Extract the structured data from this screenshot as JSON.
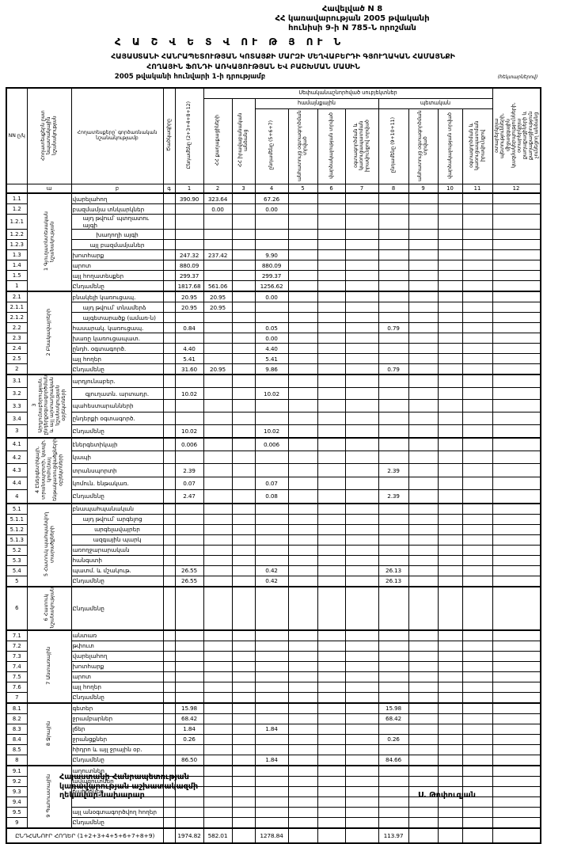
{
  "page": {
    "annex": [
      "Հավելված N 8",
      "ՀՀ կառավարության 2005 թվականի",
      "հունիսի 9-ի N 785-Ն որոշման"
    ],
    "title": "Հ Ա Շ Վ Ե Տ Վ ՈՒ Թ Յ ՈՒ Ն",
    "subtitle1": "ՀԱՅԱՍՏԱՆԻ ՀԱՆՐԱՊԵՏՈՒԹՅԱՆ ԿՈՏԱՅՔԻ ՄԱՐԶԻ ՄԵՂՎԱԲԵՐԴԻ ԳՅՈՒՂԱԿԱՆ ՀԱՄԱՅՆՔԻ",
    "subtitle2": "ՀՈՂԱՅԻՆ ՖՈՆԴԻ ԱՌԿԱՅՈՒԹՅԱՆ ԵՎ ԲԱՇԽՄԱՆ ՄԱՍԻՆ",
    "subtitle3": "2005 թվականի հունվարի 1-ի դրությամբ",
    "units_note": "(հեկտարներով)"
  },
  "table": {
    "head": {
      "nn": "NN ը/կ",
      "section_col": "Հողատեսքերն ըստ նպատակային նշանակության",
      "name_col": "Հողատեսքերը՝ գործառնական նշանակությամբ",
      "code_col": "Ծածկագիրը",
      "band_owner": "Սեփականաշնորհված սուբյեկտներ",
      "band_community": "համայնքային",
      "band_state": "պետական",
      "c1": "Ընդամենը (2+3+4+8+12)",
      "c2": "ՀՀ քաղաքացիների",
      "c3": "ՀՀ իրավաբանական անձանց",
      "c4": "ընդամենը (5+6+7)",
      "c5": "անհատույց օգտագործման տրված",
      "c6": "վարձակալության տրված",
      "c7": "օգտագործման և կառուցապատման իրավունքով տրված",
      "c8": "ընդամենը (9+10+11)",
      "c9": "անհատույց օգտագործման տրված",
      "c10": "վարձակալության տրված",
      "c11": "օգտագործման և կառուցապատման իրավունքով",
      "c12": "օտարերկրյա պետությունների, միջազգային կազմակերպությունների, օտարերկրյա քաղաքացիների և քաղաքացիություն չունեցող անձանց",
      "letters": [
        "",
        "ա",
        "բ",
        "գ",
        "1",
        "2",
        "3",
        "4",
        "5",
        "6",
        "7",
        "8",
        "9",
        "10",
        "11",
        "12"
      ]
    },
    "sections": [
      {
        "label": "1 Գյուղատնտեսական նշանակության",
        "rows": [
          {
            "n": "1.1",
            "name": "վարելահող",
            "v": {
              "c1": "390.90",
              "c2": "323.64",
              "c4": "67.26"
            }
          },
          {
            "n": "1.2",
            "name": "բազմամյա տնկարկներ",
            "v": {
              "c2": "0.00",
              "c4": "0.00"
            }
          },
          {
            "n": "1.2.1",
            "name": "այդ թվում՝ պտղատու այգի",
            "indent": 1
          },
          {
            "n": "1.2.2",
            "name": "խաղողի այգի",
            "indent": 2
          },
          {
            "n": "1.2.3",
            "name": "այլ բազմամյաներ",
            "indent": 2
          },
          {
            "n": "1.3",
            "name": "խոտհարք",
            "v": {
              "c1": "247.32",
              "c2": "237.42",
              "c4": "9.90"
            }
          },
          {
            "n": "1.4",
            "name": "արոտ",
            "v": {
              "c1": "880.09",
              "c4": "880.09"
            }
          },
          {
            "n": "1.5",
            "name": "այլ հողատեսքեր",
            "v": {
              "c1": "299.37",
              "c4": "299.37"
            }
          },
          {
            "n": "1",
            "name": "Ընդամենը",
            "total": true,
            "v": {
              "c1": "1817.68",
              "c2": "561.06",
              "c4": "1256.62"
            }
          }
        ]
      },
      {
        "label": "2 Բնակավայրերի",
        "rows": [
          {
            "n": "2.1",
            "name": "բնակելի կառուցապ.",
            "v": {
              "c1": "20.95",
              "c2": "20.95",
              "c4": "0.00"
            }
          },
          {
            "n": "2.1.1",
            "name": "այդ թվում՝ տնամերձ",
            "indent": 1,
            "v": {
              "c1": "20.95",
              "c2": "20.95"
            }
          },
          {
            "n": "2.1.2",
            "name": "այգետարածք (ամառ-ն)",
            "indent": 1
          },
          {
            "n": "2.2",
            "name": "հասարակ. կառուցապ.",
            "v": {
              "c1": "0.84",
              "c4": "0.05",
              "c8": "0.79"
            }
          },
          {
            "n": "2.3",
            "name": "խառը կառուցապատ.",
            "v": {
              "c4": "0.00"
            }
          },
          {
            "n": "2.4",
            "name": "ընդհ. օգտագործ.",
            "v": {
              "c1": "4.40",
              "c4": "4.40"
            }
          },
          {
            "n": "2.5",
            "name": "այլ հողեր",
            "v": {
              "c1": "5.41",
              "c4": "5.41"
            }
          },
          {
            "n": "2",
            "name": "Ընդամենը",
            "total": true,
            "v": {
              "c1": "31.60",
              "c2": "20.95",
              "c4": "9.86",
              "c8": "0.79"
            }
          }
        ]
      },
      {
        "label": "3 Արդյունաբերության, ընդերքօգտագործման և այլ արտադրական նշանակության օբյեկտների",
        "rows": [
          {
            "n": "3.1",
            "name": "արդյունաբեր."
          },
          {
            "n": "3.2",
            "name": "գյուղատն. արտադր.",
            "indent": 2,
            "v": {
              "c1": "10.02",
              "c4": "10.02"
            }
          },
          {
            "n": "3.3",
            "name": "պահեստարանների"
          },
          {
            "n": "3.4",
            "name": "ընդերքի օգտագործ."
          },
          {
            "n": "3",
            "name": "Ընդամենը",
            "total": true,
            "v": {
              "c1": "10.02",
              "c4": "10.02"
            }
          }
        ]
      },
      {
        "label": "4 Էներգետիկայի, տրանսպորտի, կապի, կոմունալ ենթակառուցվածքների օբյեկտների",
        "rows": [
          {
            "n": "4.1",
            "name": "էներգետիկայի",
            "v": {
              "c1": "0.006",
              "c4": "0.006"
            }
          },
          {
            "n": "4.2",
            "name": "կապի"
          },
          {
            "n": "4.3",
            "name": "տրանսպորտի",
            "v": {
              "c1": "2.39",
              "c8": "2.39"
            }
          },
          {
            "n": "4.4",
            "name": "կոմուն. ենթակառ.",
            "v": {
              "c1": "0.07",
              "c4": "0.07"
            }
          },
          {
            "n": "4",
            "name": "Ընդամենը",
            "total": true,
            "v": {
              "c1": "2.47",
              "c4": "0.08",
              "c8": "2.39"
            }
          }
        ]
      },
      {
        "label": "5 Հատուկ պահպանվող տարածքների",
        "rows": [
          {
            "n": "5.1",
            "name": "բնապահպանական"
          },
          {
            "n": "5.1.1",
            "name": "այդ թվում՝ արգելոց",
            "indent": 1
          },
          {
            "n": "5.1.2",
            "name": "արգելավայրեր",
            "indent": 2
          },
          {
            "n": "5.1.3",
            "name": "ազգային պարկ",
            "indent": 2
          },
          {
            "n": "5.2",
            "name": "առողջարարական"
          },
          {
            "n": "5.3",
            "name": "հանգստի"
          },
          {
            "n": "5.4",
            "name": "պատմ. և մշակութ.",
            "v": {
              "c1": "26.55",
              "c4": "0.42",
              "c8": "26.13"
            }
          },
          {
            "n": "5",
            "name": "Ընդամենը",
            "total": true,
            "v": {
              "c1": "26.55",
              "c4": "0.42",
              "c8": "26.13"
            }
          }
        ]
      },
      {
        "label": "6 Հատուկ նշանակության",
        "rows": [
          {
            "n": "6",
            "name": "Ընդամենը",
            "total": true,
            "tall": true
          }
        ]
      },
      {
        "label": "7 Անտառային",
        "rows": [
          {
            "n": "7.1",
            "name": "անտառ"
          },
          {
            "n": "7.2",
            "name": "թփուտ"
          },
          {
            "n": "7.3",
            "name": "վարելահող"
          },
          {
            "n": "7.4",
            "name": "խոտհարք"
          },
          {
            "n": "7.5",
            "name": "արոտ"
          },
          {
            "n": "7.6",
            "name": "այլ հողեր"
          },
          {
            "n": "7",
            "name": "Ընդամենը",
            "total": true
          }
        ]
      },
      {
        "label": "8 Ջրային",
        "rows": [
          {
            "n": "8.1",
            "name": "գետեր",
            "v": {
              "c1": "15.98",
              "c8": "15.98"
            }
          },
          {
            "n": "8.2",
            "name": "ջրամբարներ",
            "v": {
              "c1": "68.42",
              "c8": "68.42"
            }
          },
          {
            "n": "8.3",
            "name": "լճեր",
            "v": {
              "c1": "1.84",
              "c4": "1.84"
            }
          },
          {
            "n": "8.4",
            "name": "ջրանցքներ",
            "v": {
              "c1": "0.26",
              "c8": "0.26"
            }
          },
          {
            "n": "8.5",
            "name": "հիդրո և այլ ջրային օբ."
          },
          {
            "n": "8",
            "name": "Ընդամենը",
            "total": true,
            "v": {
              "c1": "86.50",
              "c4": "1.84",
              "c8": "84.66"
            }
          }
        ]
      },
      {
        "label": "9 Պահուստային",
        "rows": [
          {
            "n": "9.1",
            "name": "աղուտներ"
          },
          {
            "n": "9.2",
            "name": "ավազուտներ"
          },
          {
            "n": "9.3",
            "name": "ճահիճներ"
          },
          {
            "n": "9.4",
            "name": ""
          },
          {
            "n": "9.5",
            "name": "այլ անօգտագործվող հողեր"
          },
          {
            "n": "9",
            "name": "Ընդամենը",
            "total": true
          }
        ]
      }
    ],
    "grand_total": {
      "label": "ԸՆԴՀԱՆՈՒՐ ՀՈՂԵՐ (1+2+3+4+5+6+7+8+9)",
      "v": {
        "c1": "1974.82",
        "c2": "582.01",
        "c4": "1278.84",
        "c8": "113.97"
      }
    }
  },
  "footer": {
    "signer_title_lines": [
      "Հայաստանի Հանրապետության",
      "կառավարության աշխատակազմի",
      "ղեկավար-նախարար"
    ],
    "signer_name": "Ս. Թոփուզյան"
  }
}
